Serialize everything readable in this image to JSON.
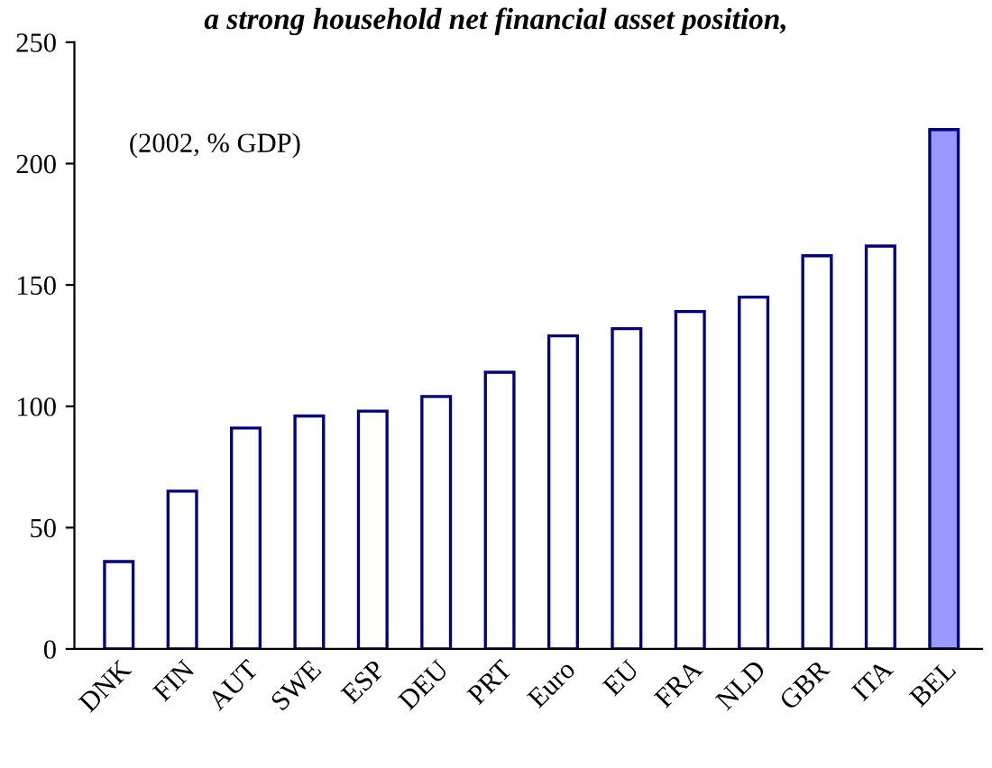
{
  "chart_data": {
    "type": "bar",
    "title": "a strong household net financial asset position,",
    "categories": [
      "DNK",
      "FIN",
      "AUT",
      "SWE",
      "ESP",
      "DEU",
      "PRT",
      "Euro",
      "EU",
      "FRA",
      "NLD",
      "GBR",
      "ITA",
      "BEL"
    ],
    "values": [
      36,
      65,
      91,
      96,
      98,
      104,
      114,
      129,
      132,
      139,
      145,
      162,
      166,
      214
    ],
    "colors": [
      "#ffffff",
      "#ffffff",
      "#ffffff",
      "#ffffff",
      "#ffffff",
      "#ffffff",
      "#ffffff",
      "#ffffff",
      "#ffffff",
      "#ffffff",
      "#ffffff",
      "#ffffff",
      "#ffffff",
      "#9999ff"
    ],
    "annotations": [
      "(2002, % GDP)"
    ],
    "ylim": [
      0,
      250
    ],
    "yticks": [
      0,
      50,
      100,
      150,
      200,
      250
    ],
    "grid": false,
    "legend": false
  }
}
